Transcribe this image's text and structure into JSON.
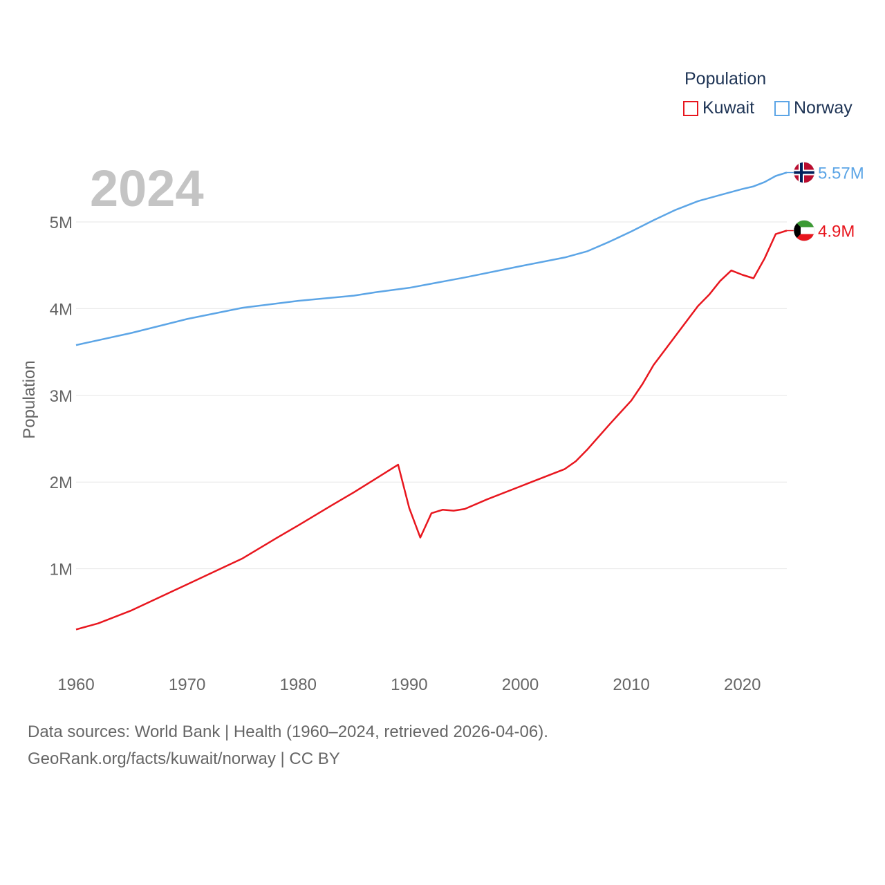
{
  "legend": {
    "title": "Population",
    "items": [
      {
        "label": "Kuwait",
        "color": "#e8161e"
      },
      {
        "label": "Norway",
        "color": "#5ca5e6"
      }
    ]
  },
  "year_label": "2024",
  "end_labels": {
    "norway": "5.57M",
    "kuwait": "4.9M"
  },
  "footer": {
    "line1": "Data sources: World Bank | Health (1960–2024, retrieved 2026-04-06).",
    "line2": "GeoRank.org/facts/kuwait/norway | CC BY"
  },
  "chart_data": {
    "type": "line",
    "title": "",
    "xlabel": "",
    "ylabel": "Population",
    "xlim": [
      1960,
      2024
    ],
    "ylim": [
      0,
      5600000
    ],
    "x_ticks": [
      1960,
      1970,
      1980,
      1990,
      2000,
      2010,
      2020
    ],
    "y_ticks": [
      {
        "value": 1000000,
        "label": "1M"
      },
      {
        "value": 2000000,
        "label": "2M"
      },
      {
        "value": 3000000,
        "label": "3M"
      },
      {
        "value": 4000000,
        "label": "4M"
      },
      {
        "value": 5000000,
        "label": "5M"
      }
    ],
    "grid": true,
    "legend_position": "top-right",
    "series": [
      {
        "name": "Kuwait",
        "color": "#e8161e",
        "points": [
          [
            1960,
            300000
          ],
          [
            1962,
            370000
          ],
          [
            1965,
            520000
          ],
          [
            1968,
            700000
          ],
          [
            1970,
            820000
          ],
          [
            1973,
            1000000
          ],
          [
            1975,
            1120000
          ],
          [
            1978,
            1350000
          ],
          [
            1980,
            1500000
          ],
          [
            1983,
            1730000
          ],
          [
            1985,
            1880000
          ],
          [
            1987,
            2040000
          ],
          [
            1989,
            2200000
          ],
          [
            1990,
            1700000
          ],
          [
            1991,
            1360000
          ],
          [
            1992,
            1640000
          ],
          [
            1993,
            1680000
          ],
          [
            1994,
            1670000
          ],
          [
            1995,
            1690000
          ],
          [
            1997,
            1800000
          ],
          [
            2000,
            1950000
          ],
          [
            2002,
            2050000
          ],
          [
            2004,
            2150000
          ],
          [
            2005,
            2240000
          ],
          [
            2006,
            2370000
          ],
          [
            2008,
            2660000
          ],
          [
            2010,
            2940000
          ],
          [
            2011,
            3130000
          ],
          [
            2012,
            3350000
          ],
          [
            2014,
            3690000
          ],
          [
            2016,
            4030000
          ],
          [
            2017,
            4160000
          ],
          [
            2018,
            4320000
          ],
          [
            2019,
            4440000
          ],
          [
            2020,
            4390000
          ],
          [
            2021,
            4350000
          ],
          [
            2022,
            4580000
          ],
          [
            2023,
            4860000
          ],
          [
            2024,
            4900000
          ]
        ]
      },
      {
        "name": "Norway",
        "color": "#5ca5e6",
        "points": [
          [
            1960,
            3580000
          ],
          [
            1965,
            3720000
          ],
          [
            1970,
            3880000
          ],
          [
            1975,
            4010000
          ],
          [
            1980,
            4090000
          ],
          [
            1985,
            4150000
          ],
          [
            1987,
            4190000
          ],
          [
            1990,
            4240000
          ],
          [
            1995,
            4360000
          ],
          [
            2000,
            4490000
          ],
          [
            2004,
            4590000
          ],
          [
            2006,
            4660000
          ],
          [
            2008,
            4770000
          ],
          [
            2010,
            4890000
          ],
          [
            2012,
            5020000
          ],
          [
            2014,
            5140000
          ],
          [
            2016,
            5240000
          ],
          [
            2018,
            5310000
          ],
          [
            2020,
            5380000
          ],
          [
            2021,
            5410000
          ],
          [
            2022,
            5460000
          ],
          [
            2023,
            5530000
          ],
          [
            2024,
            5570000
          ]
        ]
      }
    ]
  }
}
